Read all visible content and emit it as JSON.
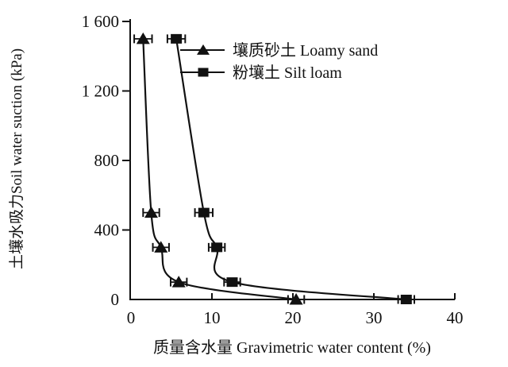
{
  "chart_data": {
    "type": "line",
    "title": "",
    "xlabel": "质量含水量  Gravimetric water content (%)",
    "ylabel": "土壤水吸力Soil water suction (kPa)",
    "xlim": [
      0,
      40
    ],
    "ylim": [
      0,
      1600
    ],
    "x_ticks": [
      0,
      10,
      20,
      30,
      40
    ],
    "x_tick_labels": [
      "0",
      "10",
      "20",
      "30",
      "40"
    ],
    "y_ticks": [
      0,
      400,
      800,
      1200,
      1600
    ],
    "y_tick_labels": [
      "0",
      "400",
      "800",
      "1 200",
      "1 600"
    ],
    "grid": false,
    "legend_position": "inside-top-left-of-plot",
    "line_color": "#111111",
    "series": [
      {
        "name": "壤质砂土 Loamy sand",
        "marker": "triangle",
        "color": "#111111",
        "points": [
          {
            "x": 1.5,
            "y": 1500,
            "xerr": 1.1
          },
          {
            "x": 2.5,
            "y": 500,
            "xerr": 1.0
          },
          {
            "x": 3.7,
            "y": 300,
            "xerr": 1.0
          },
          {
            "x": 5.9,
            "y": 100,
            "xerr": 1.0
          },
          {
            "x": 20.4,
            "y": 0,
            "xerr": 1.0
          }
        ]
      },
      {
        "name": "粉壤土 Silt loam",
        "marker": "square",
        "color": "#111111",
        "points": [
          {
            "x": 5.6,
            "y": 1500,
            "xerr": 1.1
          },
          {
            "x": 9.0,
            "y": 500,
            "xerr": 1.1
          },
          {
            "x": 10.6,
            "y": 300,
            "xerr": 1.0
          },
          {
            "x": 12.5,
            "y": 100,
            "xerr": 1.0
          },
          {
            "x": 34.0,
            "y": 0,
            "xerr": 1.0
          }
        ]
      }
    ]
  }
}
